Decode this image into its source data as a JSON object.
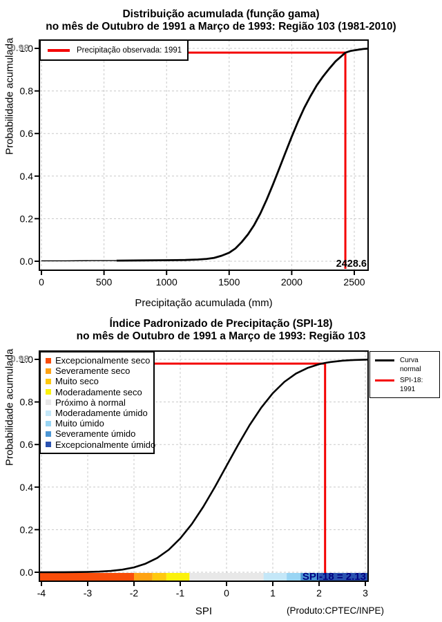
{
  "colors": {
    "background": "#FFFFFF",
    "reference_red": "#F40000",
    "curve_black": "#000000",
    "grid_gray": "#C8C8C8",
    "gray_marker": "#8C8C8C",
    "spi_value_navy": "#000080"
  },
  "chart_data": [
    {
      "type": "line",
      "title": "Distribuição acumulada (função gama)",
      "subtitle": "no mês de Outubro de 1991 a Março de 1993: Região 103 (1981-2010)",
      "xlabel": "Precipitação acumulada (mm)",
      "ylabel": "Probabilidade acumulada",
      "xlim": [
        0,
        2610
      ],
      "ylim": [
        0,
        1
      ],
      "xticks": [
        0,
        500,
        1000,
        1500,
        2000,
        2500
      ],
      "yticks": [
        0.0,
        0.2,
        0.4,
        0.6,
        0.8,
        1.0
      ],
      "grid": true,
      "legend": {
        "position": "top-left",
        "entries": [
          {
            "label": "Precipitação observada: 1991",
            "color": "#F40000",
            "type": "line"
          }
        ]
      },
      "reference": {
        "x": 2428.6,
        "y": 0.98,
        "x_label": "2428.6",
        "y_label": "0.98",
        "color": "#F40000"
      },
      "series": [
        {
          "name": "Distribuição acumulada (função gama)",
          "color": "#000000",
          "points": [
            [
              0,
              0.002
            ],
            [
              200,
              0.002
            ],
            [
              400,
              0.003
            ],
            [
              600,
              0.003
            ],
            [
              800,
              0.004
            ],
            [
              1000,
              0.005
            ],
            [
              1150,
              0.006
            ],
            [
              1250,
              0.008
            ],
            [
              1320,
              0.011
            ],
            [
              1380,
              0.016
            ],
            [
              1440,
              0.026
            ],
            [
              1500,
              0.04
            ],
            [
              1550,
              0.06
            ],
            [
              1600,
              0.09
            ],
            [
              1650,
              0.126
            ],
            [
              1700,
              0.17
            ],
            [
              1750,
              0.225
            ],
            [
              1800,
              0.29
            ],
            [
              1850,
              0.36
            ],
            [
              1900,
              0.435
            ],
            [
              1950,
              0.51
            ],
            [
              2000,
              0.585
            ],
            [
              2050,
              0.656
            ],
            [
              2100,
              0.72
            ],
            [
              2150,
              0.776
            ],
            [
              2200,
              0.826
            ],
            [
              2250,
              0.868
            ],
            [
              2300,
              0.905
            ],
            [
              2350,
              0.939
            ],
            [
              2400,
              0.965
            ],
            [
              2428.6,
              0.98
            ],
            [
              2470,
              0.988
            ],
            [
              2520,
              0.993
            ],
            [
              2570,
              0.997
            ],
            [
              2610,
              0.999
            ]
          ]
        }
      ]
    },
    {
      "type": "line",
      "title": "Índice Padronizado de Precipitação (SPI-18)",
      "subtitle": "no mês de Outubro de 1991 a Março de 1993: Região 103",
      "xlabel": "SPI",
      "ylabel": "Probabilidade acumulada",
      "footnote": "(Produto:CPTEC/INPE)",
      "annotation": "SPI-18 = 2.13",
      "xlim": [
        -4.04,
        3.06
      ],
      "ylim": [
        0,
        1
      ],
      "xticks": [
        -4,
        -3,
        -2,
        -1,
        0,
        1,
        2,
        3
      ],
      "yticks": [
        0.0,
        0.2,
        0.4,
        0.6,
        0.8,
        1.0
      ],
      "grid": true,
      "legend_right": {
        "position": "top-right-outside",
        "entries": [
          {
            "label": "Curva normal",
            "color": "#000000",
            "type": "line"
          },
          {
            "label": "SPI-18: 1991",
            "color": "#F40000",
            "type": "line"
          }
        ]
      },
      "legend_categories": [
        {
          "label": "Excepcionalmente seco",
          "color": "#F94D0A"
        },
        {
          "label": "Severamente seco",
          "color": "#FFA313"
        },
        {
          "label": "Muito seco",
          "color": "#FFC90E"
        },
        {
          "label": "Moderadamente seco",
          "color": "#FCF20C"
        },
        {
          "label": "Próximo à normal",
          "color": "#E8E8E8"
        },
        {
          "label": "Moderadamente úmido",
          "color": "#C4E7F8"
        },
        {
          "label": "Muito úmido",
          "color": "#99D5F4"
        },
        {
          "label": "Severamente úmido",
          "color": "#4C96D4"
        },
        {
          "label": "Excepcionalmente úmido",
          "color": "#2A52B0"
        }
      ],
      "reference": {
        "x": 2.13,
        "y": 0.98,
        "y_label": "0.98",
        "color": "#F40000"
      },
      "strip": {
        "segments": [
          {
            "from": -4.04,
            "to": -2,
            "color": "#F94D0A"
          },
          {
            "from": -2,
            "to": -1.6,
            "color": "#FFA313"
          },
          {
            "from": -1.6,
            "to": -1.3,
            "color": "#FFC90E"
          },
          {
            "from": -1.3,
            "to": -0.8,
            "color": "#FCF20C"
          },
          {
            "from": -0.8,
            "to": 0.8,
            "color": "#E8E8E8"
          },
          {
            "from": 0.8,
            "to": 1.3,
            "color": "#C4E7F8"
          },
          {
            "from": 1.3,
            "to": 1.6,
            "color": "#99D5F4"
          },
          {
            "from": 1.6,
            "to": 2,
            "color": "#4C96D4"
          },
          {
            "from": 2,
            "to": 3.06,
            "color": "#2A52B0"
          }
        ]
      },
      "series": [
        {
          "name": "Curva normal",
          "color": "#000000",
          "points": [
            [
              -4.04,
              0.0001
            ],
            [
              -3.5,
              0.0002
            ],
            [
              -3,
              0.0013
            ],
            [
              -2.75,
              0.003
            ],
            [
              -2.5,
              0.0062
            ],
            [
              -2.25,
              0.0122
            ],
            [
              -2,
              0.0228
            ],
            [
              -1.75,
              0.0401
            ],
            [
              -1.5,
              0.0668
            ],
            [
              -1.25,
              0.1056
            ],
            [
              -1,
              0.1587
            ],
            [
              -0.75,
              0.2266
            ],
            [
              -0.5,
              0.3085
            ],
            [
              -0.25,
              0.4013
            ],
            [
              0,
              0.5
            ],
            [
              0.25,
              0.5987
            ],
            [
              0.5,
              0.6915
            ],
            [
              0.75,
              0.7734
            ],
            [
              1,
              0.8413
            ],
            [
              1.25,
              0.8944
            ],
            [
              1.5,
              0.9332
            ],
            [
              1.75,
              0.9599
            ],
            [
              2,
              0.9772
            ],
            [
              2.13,
              0.9834
            ],
            [
              2.25,
              0.9878
            ],
            [
              2.5,
              0.9938
            ],
            [
              2.75,
              0.997
            ],
            [
              3.06,
              0.999
            ]
          ]
        }
      ]
    }
  ]
}
